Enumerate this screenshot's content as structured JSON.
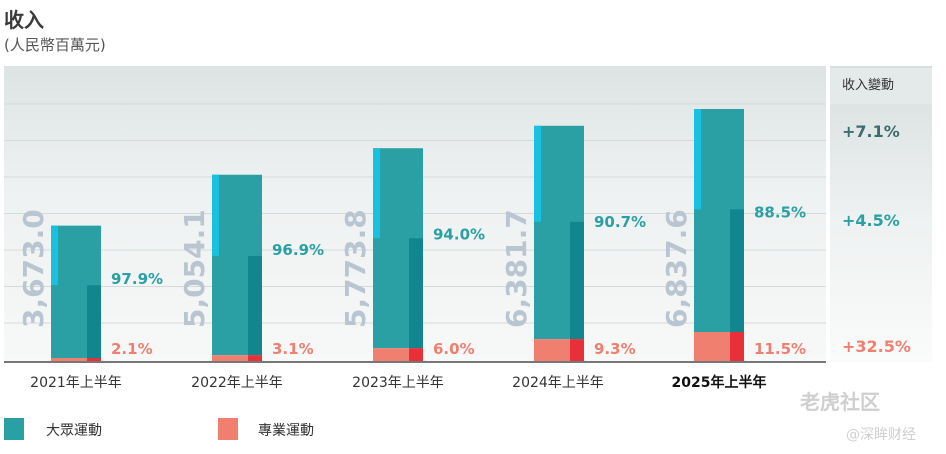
{
  "title": "收入",
  "subtitle": "(人民幣百萬元)",
  "change_header": "收入變動",
  "changes": [
    {
      "label": "+7.1%",
      "color": "#3a6e6e"
    },
    {
      "label": "+4.5%",
      "color": "#2aa0a4"
    },
    {
      "label": "+32.5%",
      "color": "#f07f70"
    }
  ],
  "legend": [
    {
      "label": "大眾運動",
      "color": "#2ba0a4"
    },
    {
      "label": "專業運動",
      "color": "#f07f70"
    }
  ],
  "watermark": {
    "line1": "老虎社区",
    "line2": "@深眸财经"
  },
  "chart_data": {
    "type": "bar",
    "categories": [
      "2021年上半年",
      "2022年上半年",
      "2023年上半年",
      "2024年上半年",
      "2025年上半年"
    ],
    "totals": [
      "3,673.0",
      "5,054.1",
      "5,773.8",
      "6,381.7",
      "6,837.6"
    ],
    "total_values": [
      3673.0,
      5054.1,
      5773.8,
      6381.7,
      6837.6
    ],
    "series": [
      {
        "name": "大眾運動",
        "values_pct": [
          97.9,
          96.9,
          94.0,
          90.7,
          88.5
        ],
        "labels": [
          "97.9%",
          "96.9%",
          "94.0%",
          "90.7%",
          "88.5%"
        ],
        "color": "#2ba0a4"
      },
      {
        "name": "專業運動",
        "values_pct": [
          2.1,
          3.1,
          6.0,
          9.3,
          11.5
        ],
        "labels": [
          "2.1%",
          "3.1%",
          "6.0%",
          "9.3%",
          "11.5%"
        ],
        "color": "#f07f70"
      }
    ],
    "highlight_category": "2025年上半年"
  }
}
